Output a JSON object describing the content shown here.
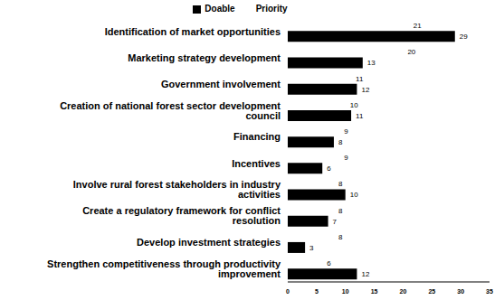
{
  "chart_data": {
    "type": "bar",
    "orientation": "horizontal",
    "categories": [
      "Identification of market opportunities",
      "Marketing strategy development",
      "Government involvement",
      "Creation of national forest sector development council",
      "Financing",
      "Incentives",
      "Involve rural forest stakeholders in industry activities",
      "Create a regulatory framework for conflict resolution",
      "Develop investment strategies",
      "Strengthen competitiveness through productivity improvement"
    ],
    "series": [
      {
        "name": "Priority",
        "color": "#ffffff",
        "values": [
          21,
          20,
          11,
          10,
          9,
          9,
          8,
          8,
          8,
          6
        ]
      },
      {
        "name": "Doable",
        "color": "#000000",
        "values": [
          29,
          13,
          12,
          11,
          8,
          6,
          10,
          7,
          3,
          12
        ]
      }
    ],
    "xlim": [
      0,
      35
    ],
    "xticks": [
      0,
      5,
      10,
      15,
      20,
      25,
      30,
      35
    ],
    "grid": false,
    "legend": "top",
    "data_labels": true
  }
}
